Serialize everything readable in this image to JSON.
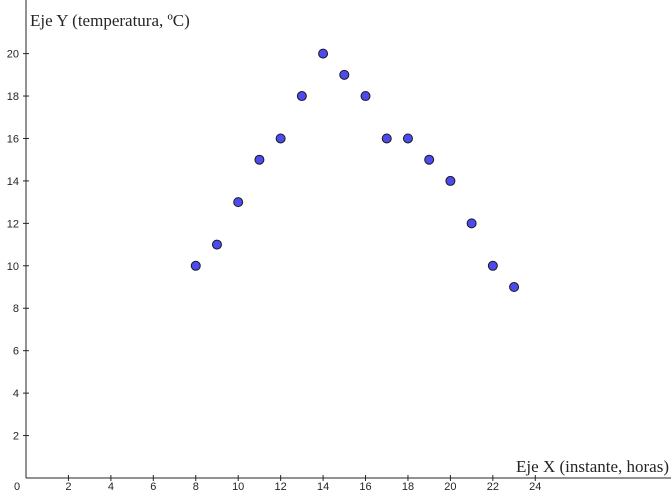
{
  "chart_data": {
    "type": "scatter",
    "title": "",
    "xlabel": "Eje X (instante, horas)",
    "ylabel": "Eje Y (temperatura, ºC)",
    "xlim": [
      0,
      31.5
    ],
    "ylim": [
      0,
      22
    ],
    "x_ticks": [
      2,
      4,
      6,
      8,
      10,
      12,
      14,
      16,
      18,
      20,
      22,
      24
    ],
    "y_ticks": [
      2,
      4,
      6,
      8,
      10,
      12,
      14,
      16,
      18,
      20
    ],
    "origin_label": "0",
    "grid": false,
    "point_color": "#4b4bef",
    "series": [
      {
        "x": [
          8,
          9,
          10,
          11,
          12,
          13,
          14,
          15,
          16,
          17,
          18,
          19,
          20,
          21,
          22,
          23
        ],
        "y": [
          10,
          11,
          13,
          15,
          16,
          18,
          20,
          19,
          18,
          16,
          16,
          15,
          14,
          12,
          10,
          9
        ]
      }
    ]
  }
}
